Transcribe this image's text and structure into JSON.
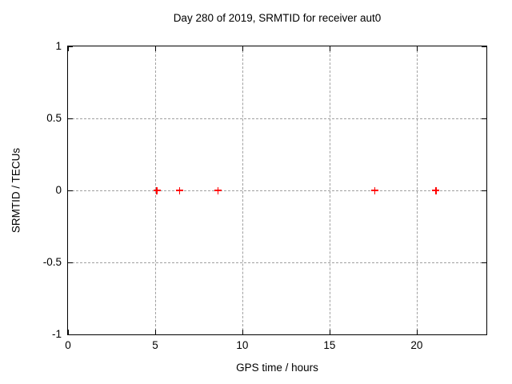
{
  "chart_data": {
    "type": "scatter",
    "title": "Day 280 of 2019, SRMTID for receiver aut0",
    "xlabel": "GPS time / hours",
    "ylabel": "SRMTID / TECUs",
    "xlim": [
      0,
      24
    ],
    "ylim": [
      -1,
      1
    ],
    "xticks": {
      "values": [
        0,
        5,
        10,
        15,
        20
      ],
      "labels": [
        "0",
        "5",
        "10",
        "15",
        "20"
      ]
    },
    "yticks": {
      "values": [
        1,
        0.5,
        0,
        -0.5,
        -1
      ],
      "labels": [
        "1",
        "0.5",
        "0",
        "-0.5",
        "-1"
      ]
    },
    "grid": true,
    "grid_style": "dashed",
    "grid_color": "#a0a0a0",
    "axis_color": "#000000",
    "background_color": "#ffffff",
    "legend": "none",
    "series": [
      {
        "name": "SRMTID",
        "marker": "plus",
        "color": "#ff0000",
        "x": [
          5.1,
          6.4,
          8.6,
          17.6,
          21.1
        ],
        "y": [
          0,
          0,
          0,
          0,
          0
        ]
      }
    ]
  }
}
